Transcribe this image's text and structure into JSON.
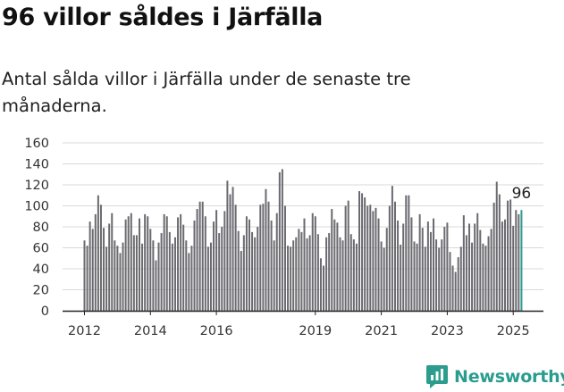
{
  "header": {
    "title": "96 villor såldes i Järfälla",
    "subtitle": "Antal sålda villor i Järfälla under de senaste tre månaderna."
  },
  "brand": {
    "name": "Newsworthy",
    "color": "#2a9d8f"
  },
  "colors": {
    "bar": "#6b6a70",
    "highlight": "#2a9d8f",
    "grid": "#d9d9d9",
    "axis": "#222222"
  },
  "chart_data": {
    "type": "bar",
    "title": "96 villor såldes i Järfälla",
    "subtitle": "Antal sålda villor i Järfälla under de senaste tre månaderna.",
    "ylim": [
      0,
      160
    ],
    "yticks": [
      0,
      20,
      40,
      60,
      80,
      100,
      120,
      140,
      160
    ],
    "xtick_labels": [
      "2012",
      "2014",
      "2016",
      "2019",
      "2021",
      "2023",
      "2025"
    ],
    "xtick_years": [
      2012,
      2014,
      2016,
      2019,
      2021,
      2023,
      2025
    ],
    "grid": true,
    "start": "2012-01",
    "end": "2025-02",
    "annotation": {
      "label": "96",
      "value": 96
    },
    "values": [
      67,
      62,
      85,
      78,
      92,
      110,
      101,
      79,
      61,
      83,
      93,
      67,
      62,
      55,
      65,
      87,
      90,
      93,
      72,
      72,
      88,
      64,
      92,
      90,
      78,
      67,
      48,
      65,
      74,
      92,
      90,
      75,
      64,
      70,
      89,
      92,
      82,
      67,
      55,
      62,
      86,
      97,
      104,
      104,
      90,
      61,
      65,
      85,
      96,
      74,
      80,
      95,
      124,
      111,
      118,
      101,
      76,
      57,
      72,
      90,
      87,
      75,
      70,
      80,
      101,
      102,
      116,
      104,
      86,
      67,
      93,
      132,
      135,
      100,
      62,
      61,
      67,
      70,
      78,
      75,
      88,
      69,
      72,
      93,
      90,
      73,
      50,
      43,
      70,
      74,
      97,
      87,
      84,
      70,
      67,
      100,
      105,
      73,
      68,
      64,
      114,
      112,
      108,
      100,
      101,
      95,
      98,
      88,
      66,
      60,
      79,
      100,
      119,
      104,
      86,
      63,
      83,
      110,
      110,
      89,
      66,
      64,
      92,
      79,
      61,
      85,
      75,
      88,
      68,
      60,
      68,
      80,
      84,
      56,
      43,
      37,
      51,
      61,
      91,
      72,
      83,
      65,
      83,
      93,
      77,
      64,
      62,
      71,
      78,
      103,
      123,
      111,
      85,
      87,
      105,
      106,
      81,
      96,
      92,
      96
    ]
  }
}
